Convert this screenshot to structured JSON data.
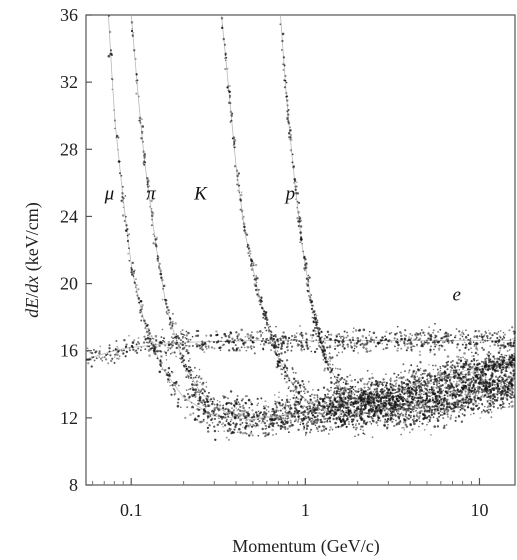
{
  "chart_data": {
    "type": "scatter",
    "title": "",
    "xlabel": "Momentum (GeV/c)",
    "ylabel_parts": [
      "dE",
      "/",
      "dx",
      " (keV/cm)"
    ],
    "x_scale": "log",
    "xlim": [
      0.055,
      16
    ],
    "ylim": [
      8,
      36
    ],
    "x_ticks": [
      {
        "value": 0.1,
        "label": "0.1"
      },
      {
        "value": 1,
        "label": "1"
      },
      {
        "value": 10,
        "label": "10"
      }
    ],
    "y_ticks": [
      {
        "value": 8,
        "label": "8"
      },
      {
        "value": 12,
        "label": "12"
      },
      {
        "value": 16,
        "label": "16"
      },
      {
        "value": 20,
        "label": "20"
      },
      {
        "value": 24,
        "label": "24"
      },
      {
        "value": 28,
        "label": "28"
      },
      {
        "value": 32,
        "label": "32"
      },
      {
        "value": 36,
        "label": "36"
      }
    ],
    "grid": false,
    "legend": "none",
    "point_color": "#111111",
    "bands": [
      {
        "name": "μ",
        "label_at": [
          0.075,
          25
        ],
        "points": [
          [
            0.074,
            36
          ],
          [
            0.08,
            30
          ],
          [
            0.09,
            25
          ],
          [
            0.1,
            21
          ],
          [
            0.12,
            17.5
          ],
          [
            0.15,
            15
          ],
          [
            0.2,
            13.2
          ],
          [
            0.3,
            12.1
          ],
          [
            0.5,
            11.9
          ],
          [
            1,
            12.3
          ],
          [
            2,
            13
          ],
          [
            5,
            14.2
          ],
          [
            16,
            15.6
          ]
        ]
      },
      {
        "name": "π",
        "label_at": [
          0.13,
          25
        ],
        "points": [
          [
            0.1,
            36
          ],
          [
            0.11,
            31
          ],
          [
            0.12,
            27
          ],
          [
            0.14,
            22
          ],
          [
            0.16,
            18.5
          ],
          [
            0.2,
            15.2
          ],
          [
            0.25,
            13.5
          ],
          [
            0.35,
            12.3
          ],
          [
            0.5,
            12.0
          ],
          [
            1,
            12.3
          ],
          [
            2,
            12.9
          ],
          [
            5,
            14
          ],
          [
            16,
            15.4
          ]
        ]
      },
      {
        "name": "K",
        "label_at": [
          0.25,
          25
        ],
        "points": [
          [
            0.33,
            36
          ],
          [
            0.36,
            32
          ],
          [
            0.4,
            27
          ],
          [
            0.45,
            23
          ],
          [
            0.55,
            19
          ],
          [
            0.7,
            15.5
          ],
          [
            0.9,
            13.5
          ],
          [
            1.2,
            12.5
          ],
          [
            2,
            12.2
          ],
          [
            4,
            12.8
          ],
          [
            8,
            13.6
          ],
          [
            16,
            14.4
          ]
        ]
      },
      {
        "name": "p",
        "label_at": [
          0.82,
          25
        ],
        "points": [
          [
            0.72,
            36
          ],
          [
            0.78,
            31
          ],
          [
            0.85,
            27
          ],
          [
            0.95,
            22.5
          ],
          [
            1.1,
            18.5
          ],
          [
            1.3,
            15.5
          ],
          [
            1.6,
            13.8
          ],
          [
            2,
            13
          ],
          [
            3,
            12.5
          ],
          [
            5,
            12.6
          ],
          [
            10,
            13.2
          ],
          [
            16,
            13.7
          ]
        ]
      },
      {
        "name": "e",
        "label_at": [
          7.4,
          19
        ],
        "points": [
          [
            0.055,
            15.5
          ],
          [
            0.08,
            16
          ],
          [
            0.1,
            16.2
          ],
          [
            0.2,
            16.5
          ],
          [
            0.5,
            16.6
          ],
          [
            1,
            16.6
          ],
          [
            5,
            16.6
          ],
          [
            16,
            16.6
          ]
        ]
      }
    ]
  }
}
